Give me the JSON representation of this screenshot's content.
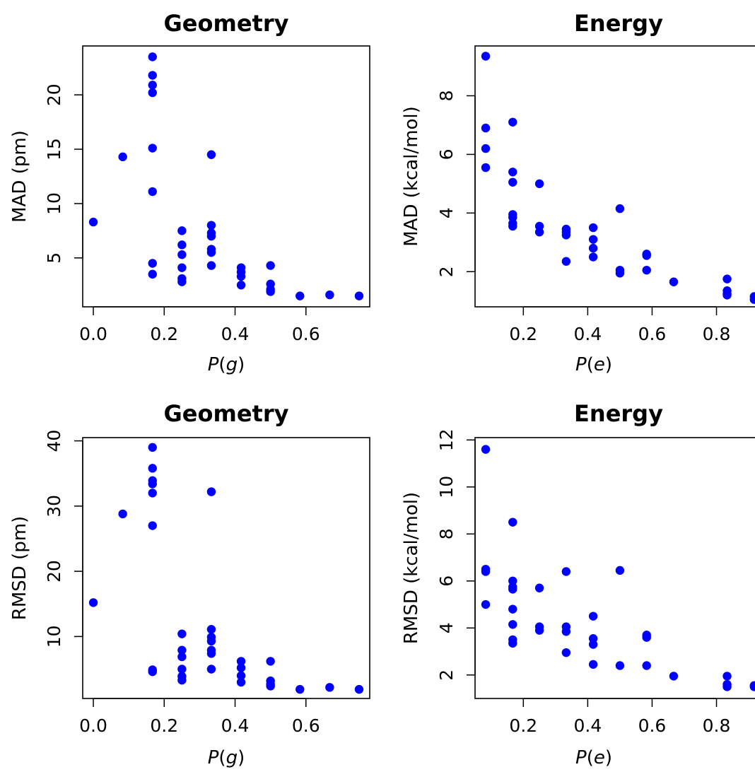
{
  "chart_data": [
    {
      "type": "scatter",
      "title": "Geometry",
      "xlabel": "P(g)",
      "ylabel": "MAD (pm)",
      "xlim": [
        -0.03,
        0.78
      ],
      "ylim": [
        0.5,
        24.5
      ],
      "xticks": [
        "0.0",
        "0.2",
        "0.4",
        "0.6"
      ],
      "yticks": [
        "5",
        "10",
        "15",
        "20"
      ],
      "grid": false,
      "point_color": "#0000ff",
      "points": [
        {
          "x": 0.0,
          "y": 8.3
        },
        {
          "x": 0.083,
          "y": 14.3
        },
        {
          "x": 0.167,
          "y": 23.5
        },
        {
          "x": 0.167,
          "y": 21.8
        },
        {
          "x": 0.167,
          "y": 20.9
        },
        {
          "x": 0.167,
          "y": 20.2
        },
        {
          "x": 0.167,
          "y": 15.1
        },
        {
          "x": 0.167,
          "y": 11.1
        },
        {
          "x": 0.167,
          "y": 4.5
        },
        {
          "x": 0.167,
          "y": 3.5
        },
        {
          "x": 0.25,
          "y": 7.5
        },
        {
          "x": 0.25,
          "y": 6.2
        },
        {
          "x": 0.25,
          "y": 5.3
        },
        {
          "x": 0.25,
          "y": 4.1
        },
        {
          "x": 0.25,
          "y": 3.1
        },
        {
          "x": 0.25,
          "y": 2.8
        },
        {
          "x": 0.333,
          "y": 14.5
        },
        {
          "x": 0.333,
          "y": 8.0
        },
        {
          "x": 0.333,
          "y": 7.3
        },
        {
          "x": 0.333,
          "y": 7.0
        },
        {
          "x": 0.333,
          "y": 5.8
        },
        {
          "x": 0.333,
          "y": 5.5
        },
        {
          "x": 0.333,
          "y": 4.3
        },
        {
          "x": 0.417,
          "y": 4.1
        },
        {
          "x": 0.417,
          "y": 3.7
        },
        {
          "x": 0.417,
          "y": 3.3
        },
        {
          "x": 0.417,
          "y": 2.5
        },
        {
          "x": 0.5,
          "y": 4.3
        },
        {
          "x": 0.5,
          "y": 2.6
        },
        {
          "x": 0.5,
          "y": 2.1
        },
        {
          "x": 0.5,
          "y": 1.9
        },
        {
          "x": 0.583,
          "y": 1.5
        },
        {
          "x": 0.667,
          "y": 1.6
        },
        {
          "x": 0.75,
          "y": 1.5
        }
      ]
    },
    {
      "type": "scatter",
      "title": "Energy",
      "xlabel": "P(e)",
      "ylabel": "MAD (kcal/mol)",
      "xlim": [
        0.05,
        0.935
      ],
      "ylim": [
        0.8,
        9.7
      ],
      "xticks": [
        "0.2",
        "0.4",
        "0.6",
        "0.8"
      ],
      "yticks": [
        "2",
        "4",
        "6",
        "8"
      ],
      "grid": false,
      "point_color": "#0000ff",
      "points": [
        {
          "x": 0.083,
          "y": 9.35
        },
        {
          "x": 0.083,
          "y": 6.9
        },
        {
          "x": 0.083,
          "y": 6.2
        },
        {
          "x": 0.083,
          "y": 5.55
        },
        {
          "x": 0.167,
          "y": 7.1
        },
        {
          "x": 0.167,
          "y": 5.4
        },
        {
          "x": 0.167,
          "y": 5.05
        },
        {
          "x": 0.167,
          "y": 3.95
        },
        {
          "x": 0.167,
          "y": 3.85
        },
        {
          "x": 0.167,
          "y": 3.65
        },
        {
          "x": 0.167,
          "y": 3.55
        },
        {
          "x": 0.25,
          "y": 5.0
        },
        {
          "x": 0.25,
          "y": 3.55
        },
        {
          "x": 0.25,
          "y": 3.35
        },
        {
          "x": 0.333,
          "y": 3.45
        },
        {
          "x": 0.333,
          "y": 3.35
        },
        {
          "x": 0.333,
          "y": 3.25
        },
        {
          "x": 0.333,
          "y": 2.35
        },
        {
          "x": 0.417,
          "y": 3.5
        },
        {
          "x": 0.417,
          "y": 3.1
        },
        {
          "x": 0.417,
          "y": 2.8
        },
        {
          "x": 0.417,
          "y": 2.5
        },
        {
          "x": 0.5,
          "y": 4.15
        },
        {
          "x": 0.5,
          "y": 2.05
        },
        {
          "x": 0.5,
          "y": 1.95
        },
        {
          "x": 0.583,
          "y": 2.6
        },
        {
          "x": 0.583,
          "y": 2.55
        },
        {
          "x": 0.583,
          "y": 2.05
        },
        {
          "x": 0.667,
          "y": 1.65
        },
        {
          "x": 0.833,
          "y": 1.75
        },
        {
          "x": 0.833,
          "y": 1.35
        },
        {
          "x": 0.833,
          "y": 1.25
        },
        {
          "x": 0.833,
          "y": 1.2
        },
        {
          "x": 0.917,
          "y": 1.15
        },
        {
          "x": 0.917,
          "y": 1.05
        }
      ]
    },
    {
      "type": "scatter",
      "title": "Geometry",
      "xlabel": "P(g)",
      "ylabel": "RMSD (pm)",
      "xlim": [
        -0.03,
        0.78
      ],
      "ylim": [
        0.5,
        40.5
      ],
      "xticks": [
        "0.0",
        "0.2",
        "0.4",
        "0.6"
      ],
      "yticks": [
        "10",
        "20",
        "30",
        "40"
      ],
      "grid": false,
      "point_color": "#0000ff",
      "points": [
        {
          "x": 0.0,
          "y": 15.2
        },
        {
          "x": 0.083,
          "y": 28.8
        },
        {
          "x": 0.167,
          "y": 39.0
        },
        {
          "x": 0.167,
          "y": 35.8
        },
        {
          "x": 0.167,
          "y": 33.9
        },
        {
          "x": 0.167,
          "y": 33.4
        },
        {
          "x": 0.167,
          "y": 32.0
        },
        {
          "x": 0.167,
          "y": 27.0
        },
        {
          "x": 0.167,
          "y": 4.9
        },
        {
          "x": 0.167,
          "y": 4.6
        },
        {
          "x": 0.25,
          "y": 10.4
        },
        {
          "x": 0.25,
          "y": 7.9
        },
        {
          "x": 0.25,
          "y": 6.9
        },
        {
          "x": 0.25,
          "y": 5.0
        },
        {
          "x": 0.25,
          "y": 3.9
        },
        {
          "x": 0.25,
          "y": 3.3
        },
        {
          "x": 0.333,
          "y": 32.2
        },
        {
          "x": 0.333,
          "y": 11.1
        },
        {
          "x": 0.333,
          "y": 9.9
        },
        {
          "x": 0.333,
          "y": 9.3
        },
        {
          "x": 0.333,
          "y": 7.9
        },
        {
          "x": 0.333,
          "y": 7.4
        },
        {
          "x": 0.333,
          "y": 5.0
        },
        {
          "x": 0.417,
          "y": 6.2
        },
        {
          "x": 0.417,
          "y": 5.2
        },
        {
          "x": 0.417,
          "y": 4.0
        },
        {
          "x": 0.417,
          "y": 3.0
        },
        {
          "x": 0.5,
          "y": 6.2
        },
        {
          "x": 0.5,
          "y": 3.2
        },
        {
          "x": 0.5,
          "y": 2.7
        },
        {
          "x": 0.5,
          "y": 2.4
        },
        {
          "x": 0.583,
          "y": 1.9
        },
        {
          "x": 0.667,
          "y": 2.2
        },
        {
          "x": 0.75,
          "y": 1.9
        }
      ]
    },
    {
      "type": "scatter",
      "title": "Energy",
      "xlabel": "P(e)",
      "ylabel": "RMSD (kcal/mol)",
      "xlim": [
        0.05,
        0.935
      ],
      "ylim": [
        1.0,
        12.1
      ],
      "xticks": [
        "0.2",
        "0.4",
        "0.6",
        "0.8"
      ],
      "yticks": [
        "2",
        "4",
        "6",
        "8",
        "10",
        "12"
      ],
      "grid": false,
      "point_color": "#0000ff",
      "points": [
        {
          "x": 0.083,
          "y": 11.6
        },
        {
          "x": 0.083,
          "y": 6.5
        },
        {
          "x": 0.083,
          "y": 6.4
        },
        {
          "x": 0.083,
          "y": 5.0
        },
        {
          "x": 0.167,
          "y": 8.5
        },
        {
          "x": 0.167,
          "y": 6.0
        },
        {
          "x": 0.167,
          "y": 5.75
        },
        {
          "x": 0.167,
          "y": 5.65
        },
        {
          "x": 0.167,
          "y": 4.8
        },
        {
          "x": 0.167,
          "y": 4.15
        },
        {
          "x": 0.167,
          "y": 3.5
        },
        {
          "x": 0.167,
          "y": 3.35
        },
        {
          "x": 0.25,
          "y": 5.7
        },
        {
          "x": 0.25,
          "y": 4.05
        },
        {
          "x": 0.25,
          "y": 3.9
        },
        {
          "x": 0.333,
          "y": 6.4
        },
        {
          "x": 0.333,
          "y": 4.05
        },
        {
          "x": 0.333,
          "y": 3.85
        },
        {
          "x": 0.333,
          "y": 2.95
        },
        {
          "x": 0.417,
          "y": 4.5
        },
        {
          "x": 0.417,
          "y": 3.55
        },
        {
          "x": 0.417,
          "y": 3.3
        },
        {
          "x": 0.417,
          "y": 2.45
        },
        {
          "x": 0.5,
          "y": 6.45
        },
        {
          "x": 0.5,
          "y": 2.4
        },
        {
          "x": 0.583,
          "y": 3.7
        },
        {
          "x": 0.583,
          "y": 3.6
        },
        {
          "x": 0.583,
          "y": 2.4
        },
        {
          "x": 0.667,
          "y": 1.95
        },
        {
          "x": 0.833,
          "y": 1.95
        },
        {
          "x": 0.833,
          "y": 1.6
        },
        {
          "x": 0.833,
          "y": 1.5
        },
        {
          "x": 0.917,
          "y": 1.55
        },
        {
          "x": 0.917,
          "y": 1.5
        }
      ]
    }
  ]
}
